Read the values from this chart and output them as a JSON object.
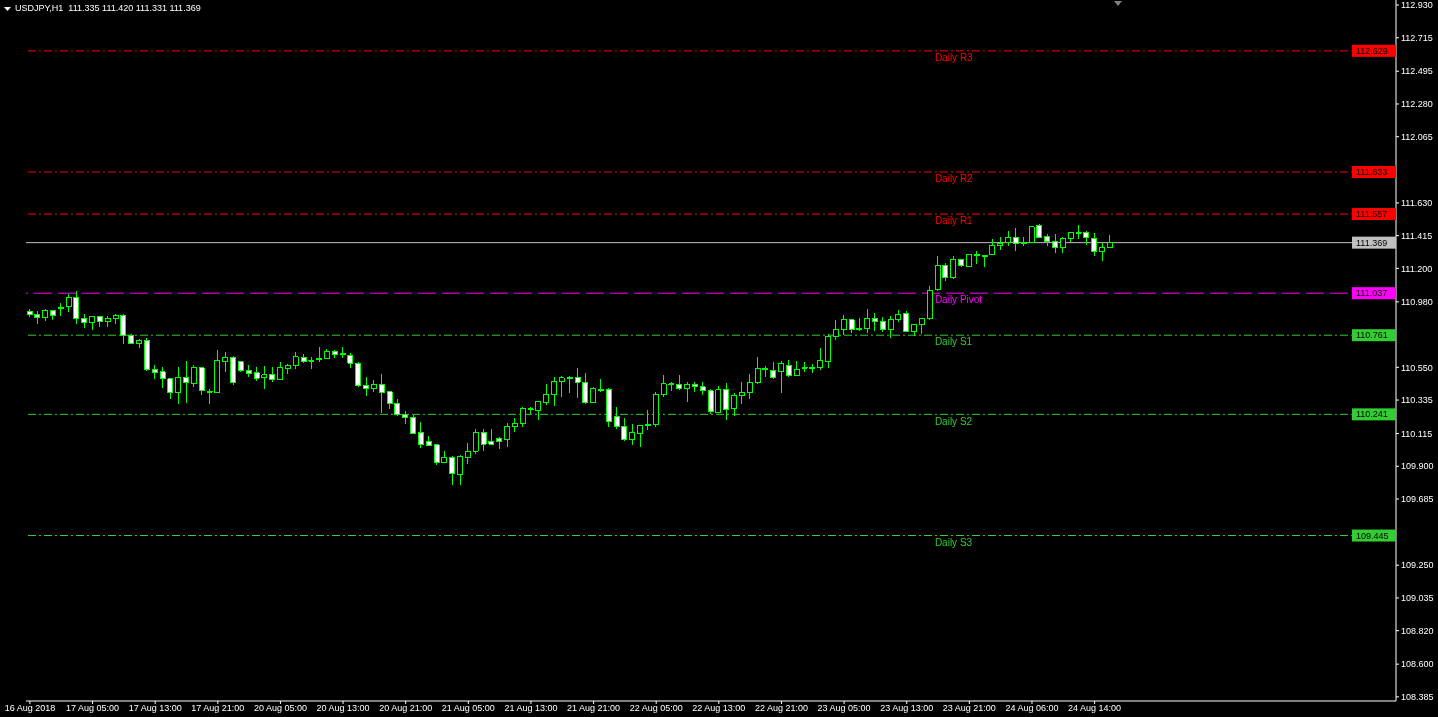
{
  "chart_data": {
    "type": "candlestick",
    "title": "USDJPY,H1  111.335 111.420 111.331 111.369",
    "categories": [
      "16 Aug 2018",
      null,
      null,
      null,
      null,
      null,
      null,
      null,
      "17 Aug 05:00",
      null,
      null,
      null,
      null,
      null,
      null,
      null,
      "17 Aug 13:00",
      null,
      null,
      null,
      null,
      null,
      null,
      null,
      "17 Aug 21:00",
      null,
      null,
      null,
      null,
      null,
      null,
      null,
      "20 Aug 05:00",
      null,
      null,
      null,
      null,
      null,
      null,
      null,
      "20 Aug 13:00",
      null,
      null,
      null,
      null,
      null,
      null,
      null,
      "20 Aug 21:00",
      null,
      null,
      null,
      null,
      null,
      null,
      null,
      "21 Aug 05:00",
      null,
      null,
      null,
      null,
      null,
      null,
      null,
      "21 Aug 13:00",
      null,
      null,
      null,
      null,
      null,
      null,
      null,
      "21 Aug 21:00",
      null,
      null,
      null,
      null,
      null,
      null,
      null,
      "22 Aug 05:00",
      null,
      null,
      null,
      null,
      null,
      null,
      null,
      "22 Aug 13:00",
      null,
      null,
      null,
      null,
      null,
      null,
      null,
      "22 Aug 21:00",
      null,
      null,
      null,
      null,
      null,
      null,
      null,
      "23 Aug 05:00",
      null,
      null,
      null,
      null,
      null,
      null,
      null,
      "23 Aug 13:00",
      null,
      null,
      null,
      null,
      null,
      null,
      null,
      "23 Aug 21:00",
      null,
      null,
      null,
      null,
      null,
      null,
      null,
      "24 Aug 06:00",
      null,
      null,
      null,
      null,
      null,
      null,
      null,
      "24 Aug 14:00",
      null,
      null,
      null,
      null,
      null,
      null,
      null,
      null,
      null,
      null,
      null,
      null,
      null,
      null,
      null,
      null,
      null,
      null,
      null,
      null,
      null,
      null,
      null,
      null,
      null,
      null,
      null,
      null,
      null,
      null,
      null,
      null,
      null,
      null,
      null,
      null,
      null,
      null
    ],
    "ohlc": [
      [
        110.917,
        110.93,
        110.878,
        110.895
      ],
      [
        110.897,
        110.917,
        110.836,
        110.875
      ],
      [
        110.875,
        110.932,
        110.856,
        110.923
      ],
      [
        110.923,
        110.928,
        110.862,
        110.889
      ],
      [
        110.941,
        110.972,
        110.889,
        110.941
      ],
      [
        110.948,
        111.03,
        110.915,
        111.009
      ],
      [
        111.009,
        111.05,
        110.836,
        110.871
      ],
      [
        110.871,
        110.897,
        110.806,
        110.843
      ],
      [
        110.843,
        110.889,
        110.797,
        110.884
      ],
      [
        110.884,
        110.889,
        110.816,
        110.849
      ],
      [
        110.849,
        110.886,
        110.816,
        110.873
      ],
      [
        110.869,
        110.897,
        110.836,
        110.893
      ],
      [
        110.891,
        110.899,
        110.705,
        110.76
      ],
      [
        110.76,
        110.768,
        110.703,
        110.705
      ],
      [
        110.705,
        110.738,
        110.679,
        110.729
      ],
      [
        110.729,
        110.742,
        110.524,
        110.537
      ],
      [
        110.537,
        110.565,
        110.476,
        110.515
      ],
      [
        110.52,
        110.552,
        110.417,
        110.476
      ],
      [
        110.474,
        110.478,
        110.343,
        110.384
      ],
      [
        110.384,
        110.552,
        110.31,
        110.485
      ],
      [
        110.485,
        110.592,
        110.316,
        110.45
      ],
      [
        110.443,
        110.565,
        110.423,
        110.546
      ],
      [
        110.546,
        110.55,
        110.369,
        110.397
      ],
      [
        110.391,
        110.406,
        110.306,
        110.391
      ],
      [
        110.384,
        110.664,
        110.38,
        110.596
      ],
      [
        110.589,
        110.648,
        110.522,
        110.616
      ],
      [
        110.616,
        110.624,
        110.437,
        110.45
      ],
      [
        110.585,
        110.592,
        110.517,
        110.53
      ],
      [
        110.53,
        110.565,
        110.485,
        110.509
      ],
      [
        110.513,
        110.55,
        110.463,
        110.478
      ],
      [
        110.482,
        110.559,
        110.41,
        110.5
      ],
      [
        110.5,
        110.55,
        110.456,
        110.469
      ],
      [
        110.469,
        110.585,
        110.465,
        110.546
      ],
      [
        110.544,
        110.572,
        110.509,
        110.565
      ],
      [
        110.561,
        110.651,
        110.541,
        110.618
      ],
      [
        110.616,
        110.637,
        110.581,
        110.587
      ],
      [
        110.594,
        110.616,
        110.541,
        110.594
      ],
      [
        110.605,
        110.683,
        110.583,
        110.605
      ],
      [
        110.607,
        110.67,
        110.602,
        110.657
      ],
      [
        110.655,
        110.664,
        110.613,
        110.633
      ],
      [
        110.635,
        110.683,
        110.613,
        110.635
      ],
      [
        110.629,
        110.642,
        110.548,
        110.576
      ],
      [
        110.578,
        110.585,
        110.421,
        110.43
      ],
      [
        110.432,
        110.485,
        110.36,
        110.41
      ],
      [
        110.41,
        110.467,
        110.391,
        110.439
      ],
      [
        110.439,
        110.506,
        110.253,
        110.384
      ],
      [
        110.388,
        110.393,
        110.279,
        110.314
      ],
      [
        110.314,
        110.343,
        110.229,
        110.24
      ],
      [
        110.24,
        110.264,
        110.179,
        110.22
      ],
      [
        110.218,
        110.24,
        110.113,
        110.116
      ],
      [
        110.124,
        110.192,
        110.017,
        110.046
      ],
      [
        110.065,
        110.096,
        110.03,
        110.037
      ],
      [
        110.041,
        110.046,
        109.906,
        109.926
      ],
      [
        109.926,
        110.002,
        109.923,
        109.956
      ],
      [
        109.956,
        109.967,
        109.775,
        109.853
      ],
      [
        109.847,
        109.976,
        109.775,
        109.963
      ],
      [
        109.96,
        110.052,
        109.917,
        110.0
      ],
      [
        110.0,
        110.146,
        109.978,
        110.124
      ],
      [
        110.124,
        110.146,
        110.002,
        110.046
      ],
      [
        110.065,
        110.146,
        110.037,
        110.046
      ],
      [
        110.081,
        110.094,
        110.011,
        110.065
      ],
      [
        110.078,
        110.183,
        110.024,
        110.164
      ],
      [
        110.161,
        110.218,
        110.122,
        110.183
      ],
      [
        110.183,
        110.292,
        110.159,
        110.277
      ],
      [
        110.273,
        110.29,
        110.242,
        110.273
      ],
      [
        110.268,
        110.329,
        110.207,
        110.323
      ],
      [
        110.319,
        110.441,
        110.305,
        110.373
      ],
      [
        110.373,
        110.487,
        110.299,
        110.458
      ],
      [
        110.456,
        110.493,
        110.358,
        110.48
      ],
      [
        110.48,
        110.493,
        110.382,
        110.48
      ],
      [
        110.485,
        110.546,
        110.351,
        110.452
      ],
      [
        110.452,
        110.513,
        110.312,
        110.319
      ],
      [
        110.319,
        110.421,
        110.316,
        110.408
      ],
      [
        110.404,
        110.474,
        110.388,
        110.404
      ],
      [
        110.406,
        110.412,
        110.155,
        110.196
      ],
      [
        110.229,
        110.29,
        110.148,
        110.161
      ],
      [
        110.164,
        110.216,
        110.063,
        110.076
      ],
      [
        110.076,
        110.179,
        110.041,
        110.12
      ],
      [
        110.115,
        110.172,
        110.024,
        110.17
      ],
      [
        110.174,
        110.271,
        110.139,
        110.174
      ],
      [
        110.174,
        110.386,
        110.161,
        110.373
      ],
      [
        110.373,
        110.5,
        110.358,
        110.441
      ],
      [
        110.439,
        110.454,
        110.397,
        110.439
      ],
      [
        110.439,
        110.5,
        110.404,
        110.412
      ],
      [
        110.412,
        110.454,
        110.319,
        110.439
      ],
      [
        110.439,
        110.454,
        110.391,
        110.426
      ],
      [
        110.421,
        110.454,
        110.371,
        110.397
      ],
      [
        110.395,
        110.406,
        110.246,
        110.26
      ],
      [
        110.253,
        110.428,
        110.249,
        110.402
      ],
      [
        110.402,
        110.447,
        110.201,
        110.273
      ],
      [
        110.279,
        110.382,
        110.227,
        110.367
      ],
      [
        110.367,
        110.454,
        110.31,
        110.386
      ],
      [
        110.384,
        110.506,
        110.345,
        110.452
      ],
      [
        110.45,
        110.618,
        110.443,
        110.543
      ],
      [
        110.537,
        110.559,
        110.487,
        110.537
      ],
      [
        110.53,
        110.585,
        110.476,
        110.483
      ],
      [
        110.522,
        110.592,
        110.384,
        110.572
      ],
      [
        110.563,
        110.598,
        110.489,
        110.495
      ],
      [
        110.495,
        110.592,
        110.491,
        110.537
      ],
      [
        110.548,
        110.585,
        110.517,
        110.548
      ],
      [
        110.548,
        110.572,
        110.513,
        110.548
      ],
      [
        110.548,
        110.677,
        110.535,
        110.592
      ],
      [
        110.587,
        110.768,
        110.546,
        110.755
      ],
      [
        110.753,
        110.858,
        110.729,
        110.799
      ],
      [
        110.799,
        110.893,
        110.762,
        110.864
      ],
      [
        110.864,
        110.869,
        110.775,
        110.797
      ],
      [
        110.801,
        110.873,
        110.788,
        110.801
      ],
      [
        110.803,
        110.932,
        110.775,
        110.871
      ],
      [
        110.871,
        110.906,
        110.79,
        110.849
      ],
      [
        110.851,
        110.88,
        110.781,
        110.797
      ],
      [
        110.797,
        110.888,
        110.742,
        110.864
      ],
      [
        110.864,
        110.926,
        110.845,
        110.897
      ],
      [
        110.904,
        110.919,
        110.779,
        110.786
      ],
      [
        110.786,
        110.832,
        110.753,
        110.832
      ],
      [
        110.83,
        110.871,
        110.766,
        110.871
      ],
      [
        110.871,
        111.083,
        110.862,
        111.054
      ],
      [
        111.059,
        111.284,
        111.05,
        111.218
      ],
      [
        111.218,
        111.234,
        111.12,
        111.137
      ],
      [
        111.137,
        111.284,
        111.131,
        111.258
      ],
      [
        111.258,
        111.264,
        111.21,
        111.218
      ],
      [
        111.212,
        111.295,
        111.21,
        111.29
      ],
      [
        111.288,
        111.312,
        111.229,
        111.288
      ],
      [
        111.284,
        111.284,
        111.212,
        111.277
      ],
      [
        111.29,
        111.395,
        111.29,
        111.349
      ],
      [
        111.349,
        111.404,
        111.323,
        111.365
      ],
      [
        111.367,
        111.443,
        111.349,
        111.4
      ],
      [
        111.4,
        111.463,
        111.317,
        111.362
      ],
      [
        111.367,
        111.404,
        111.347,
        111.367
      ],
      [
        111.367,
        111.476,
        111.367,
        111.474
      ],
      [
        111.483,
        111.489,
        111.4,
        111.402
      ],
      [
        111.408,
        111.424,
        111.345,
        111.375
      ],
      [
        111.375,
        111.424,
        111.303,
        111.336
      ],
      [
        111.336,
        111.404,
        111.303,
        111.395
      ],
      [
        111.395,
        111.434,
        111.373,
        111.434
      ],
      [
        111.434,
        111.482,
        111.395,
        111.434
      ],
      [
        111.434,
        111.443,
        111.351,
        111.404
      ],
      [
        111.395,
        111.43,
        111.282,
        111.31
      ],
      [
        111.31,
        111.367,
        111.249,
        111.336
      ],
      [
        111.335,
        111.42,
        111.331,
        111.369
      ],
      null,
      null,
      null,
      null,
      null,
      null,
      null,
      null,
      null,
      null,
      null,
      null,
      null,
      null,
      null,
      null,
      null,
      null,
      null,
      null,
      null,
      null,
      null,
      null,
      null,
      null,
      null,
      null,
      null,
      null,
      null,
      null,
      null,
      null,
      null,
      null
    ],
    "color": "#00ff00",
    "ylim": [
      108.358,
      112.963
    ],
    "yticks": [
      {
        "value": 108.385,
        "label": "108.385"
      },
      {
        "value": 108.6,
        "label": "108.600"
      },
      {
        "value": 108.82,
        "label": "108.820"
      },
      {
        "value": 109.035,
        "label": "109.035"
      },
      {
        "value": 109.25,
        "label": "109.250"
      },
      {
        "value": 109.685,
        "label": "109.685"
      },
      {
        "value": 109.9,
        "label": "109.900"
      },
      {
        "value": 110.115,
        "label": "110.115"
      },
      {
        "value": 110.335,
        "label": "110.335"
      },
      {
        "value": 110.55,
        "label": "110.550"
      },
      {
        "value": 110.98,
        "label": "110.980"
      },
      {
        "value": 111.2,
        "label": "111.200"
      },
      {
        "value": 111.415,
        "label": "111.415"
      },
      {
        "value": 111.63,
        "label": "111.630"
      },
      {
        "value": 112.065,
        "label": "112.065"
      },
      {
        "value": 112.28,
        "label": "112.280"
      },
      {
        "value": 112.495,
        "label": "112.495"
      },
      {
        "value": 112.715,
        "label": "112.715"
      },
      {
        "value": 112.93,
        "label": "112.930"
      }
    ],
    "ref_lines": [
      {
        "axis": "y",
        "value": 112.629,
        "label": "Daily R3",
        "color": "#ff0000",
        "line_style": "dashdot"
      },
      {
        "axis": "y",
        "value": 111.833,
        "label": "Daily R2",
        "color": "#ff0000",
        "line_style": "dashdot"
      },
      {
        "axis": "y",
        "value": 111.557,
        "label": "Daily R1",
        "color": "#ff0000",
        "line_style": "dashdot"
      },
      {
        "axis": "y",
        "value": 111.369,
        "color": "#c0c0c0",
        "line_style": "solid"
      },
      {
        "axis": "y",
        "value": 111.037,
        "label": "Daily Pivot",
        "color": "#ff00ff",
        "line_style": "dashed"
      },
      {
        "axis": "y",
        "value": 110.761,
        "label": "Daily S1",
        "color": "#32cd32",
        "line_style": "dashdot"
      },
      {
        "axis": "y",
        "value": 110.241,
        "label": "Daily S2",
        "color": "#32cd32",
        "line_style": "dashdot"
      },
      {
        "axis": "y",
        "value": 109.445,
        "label": "Daily S3",
        "color": "#32cd32",
        "line_style": "dashdot"
      }
    ],
    "annotations": [
      {
        "text": "112.629",
        "y": 112.629
      },
      {
        "text": "111.833",
        "y": 111.833
      },
      {
        "text": "111.557",
        "y": 111.557
      },
      {
        "text": "111.369",
        "y": 111.369
      },
      {
        "text": "111.037",
        "y": 111.037
      },
      {
        "text": "110.761",
        "y": 110.761
      },
      {
        "text": "110.241",
        "y": 110.241
      },
      {
        "text": "109.445",
        "y": 109.445
      }
    ]
  }
}
